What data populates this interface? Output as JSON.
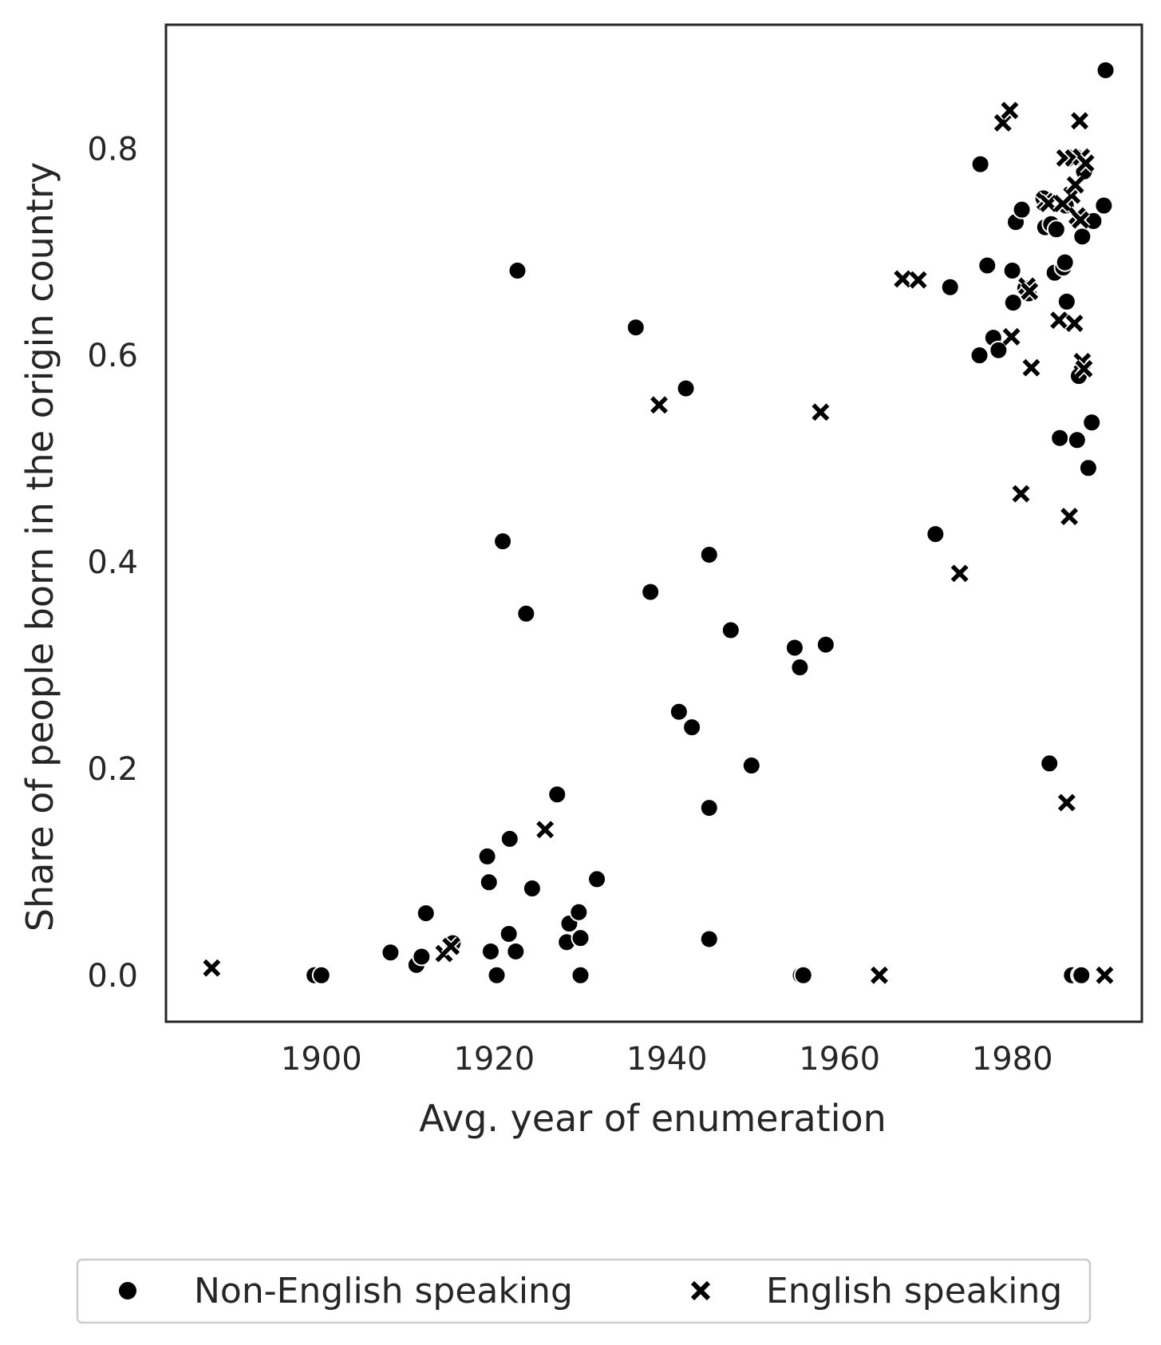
{
  "chart_data": {
    "type": "scatter",
    "title": "",
    "xlabel": "Avg. year of enumeration",
    "ylabel": "Share of people born in the origin country",
    "xlim": [
      1882,
      1995
    ],
    "ylim": [
      -0.045,
      0.92
    ],
    "xticks": [
      1900,
      1920,
      1940,
      1960,
      1980
    ],
    "yticks": [
      0.0,
      0.2,
      0.4,
      0.6,
      0.8
    ],
    "grid": false,
    "legend_position": "bottom-center",
    "legend_labels": [
      "Non-English speaking",
      "English speaking"
    ],
    "marker_color": "#000000",
    "series": [
      {
        "name": "Non-English speaking",
        "marker": "circle",
        "points": [
          [
            1899.2,
            0.0
          ],
          [
            1900.0,
            0.0
          ],
          [
            1908.0,
            0.022
          ],
          [
            1911.0,
            0.01
          ],
          [
            1911.6,
            0.018
          ],
          [
            1912.1,
            0.06
          ],
          [
            1915.2,
            0.031
          ],
          [
            1919.2,
            0.115
          ],
          [
            1919.4,
            0.09
          ],
          [
            1919.6,
            0.023
          ],
          [
            1920.3,
            0.0
          ],
          [
            1921.0,
            0.42
          ],
          [
            1921.7,
            0.04
          ],
          [
            1921.8,
            0.132
          ],
          [
            1922.5,
            0.023
          ],
          [
            1922.7,
            0.682
          ],
          [
            1923.7,
            0.35
          ],
          [
            1924.4,
            0.084
          ],
          [
            1927.3,
            0.175
          ],
          [
            1928.4,
            0.032
          ],
          [
            1928.7,
            0.05
          ],
          [
            1929.8,
            0.061
          ],
          [
            1930.0,
            0.036
          ],
          [
            1930.0,
            0.0
          ],
          [
            1931.9,
            0.093
          ],
          [
            1936.4,
            0.627
          ],
          [
            1938.1,
            0.371
          ],
          [
            1941.4,
            0.255
          ],
          [
            1942.2,
            0.568
          ],
          [
            1942.9,
            0.24
          ],
          [
            1944.9,
            0.407
          ],
          [
            1944.9,
            0.162
          ],
          [
            1944.9,
            0.035
          ],
          [
            1947.4,
            0.334
          ],
          [
            1949.8,
            0.203
          ],
          [
            1954.8,
            0.317
          ],
          [
            1955.4,
            0.298
          ],
          [
            1955.5,
            0.0
          ],
          [
            1955.8,
            0.0
          ],
          [
            1958.4,
            0.32
          ],
          [
            1971.1,
            0.427
          ],
          [
            1972.8,
            0.666
          ],
          [
            1976.2,
            0.6
          ],
          [
            1976.3,
            0.785
          ],
          [
            1977.1,
            0.687
          ],
          [
            1977.8,
            0.617
          ],
          [
            1978.4,
            0.605
          ],
          [
            1980.0,
            0.682
          ],
          [
            1980.1,
            0.651
          ],
          [
            1980.4,
            0.729
          ],
          [
            1981.1,
            0.741
          ],
          [
            1981.5,
            0.665
          ],
          [
            1981.9,
            0.66
          ],
          [
            1983.6,
            0.752
          ],
          [
            1983.8,
            0.724
          ],
          [
            1984.3,
            0.205
          ],
          [
            1984.5,
            0.727
          ],
          [
            1984.9,
            0.68
          ],
          [
            1985.1,
            0.722
          ],
          [
            1985.5,
            0.52
          ],
          [
            1985.9,
            0.685
          ],
          [
            1986.1,
            0.69
          ],
          [
            1986.2,
            0.745
          ],
          [
            1986.3,
            0.652
          ],
          [
            1986.9,
            0.0
          ],
          [
            1987.5,
            0.518
          ],
          [
            1987.7,
            0.58
          ],
          [
            1987.8,
            0.0
          ],
          [
            1988.0,
            0.0
          ],
          [
            1988.1,
            0.715
          ],
          [
            1988.3,
            0.778
          ],
          [
            1988.8,
            0.491
          ],
          [
            1989.2,
            0.535
          ],
          [
            1989.4,
            0.73
          ],
          [
            1990.6,
            0.745
          ],
          [
            1990.8,
            0.876
          ]
        ]
      },
      {
        "name": "English speaking",
        "marker": "x",
        "points": [
          [
            1887.3,
            0.007
          ],
          [
            1914.2,
            0.021
          ],
          [
            1915.0,
            0.028
          ],
          [
            1925.9,
            0.141
          ],
          [
            1939.1,
            0.552
          ],
          [
            1957.8,
            0.545
          ],
          [
            1964.6,
            0.0
          ],
          [
            1967.3,
            0.674
          ],
          [
            1969.1,
            0.673
          ],
          [
            1973.9,
            0.389
          ],
          [
            1978.9,
            0.825
          ],
          [
            1979.7,
            0.837
          ],
          [
            1979.9,
            0.618
          ],
          [
            1981.0,
            0.466
          ],
          [
            1981.7,
            0.667
          ],
          [
            1982.0,
            0.662
          ],
          [
            1982.2,
            0.588
          ],
          [
            1983.8,
            0.749
          ],
          [
            1984.2,
            0.747
          ],
          [
            1985.4,
            0.634
          ],
          [
            1985.8,
            0.747
          ],
          [
            1986.1,
            0.791
          ],
          [
            1986.3,
            0.167
          ],
          [
            1986.6,
            0.444
          ],
          [
            1986.9,
            0.755
          ],
          [
            1987.1,
            0.791
          ],
          [
            1987.2,
            0.631
          ],
          [
            1987.3,
            0.765
          ],
          [
            1987.5,
            0.735
          ],
          [
            1987.8,
            0.827
          ],
          [
            1987.9,
            0.731
          ],
          [
            1988.0,
            0.792
          ],
          [
            1988.1,
            0.594
          ],
          [
            1988.3,
            0.587
          ],
          [
            1988.5,
            0.786
          ],
          [
            1990.7,
            0.0
          ]
        ]
      }
    ]
  }
}
